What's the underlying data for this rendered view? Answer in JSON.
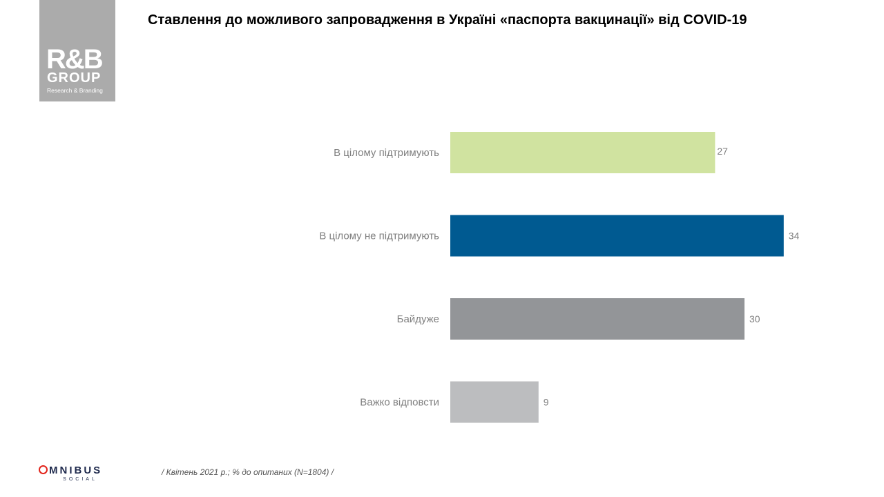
{
  "logo": {
    "line1": "R&B",
    "line2": "GROUP",
    "line3": "Research & Branding"
  },
  "title": "Ставлення до можливого запровадження в Україні «паспорта вакцинації» від COVID-19",
  "footnote": "/ Квітень 2021 р.; % до опитаних (N=1804) /",
  "brand": {
    "name": "MNIBUS",
    "sub": "SOCIAL"
  },
  "chart_data": {
    "type": "bar",
    "orientation": "horizontal",
    "title": "Ставлення до можливого запровадження в Україні «паспорта вакцинації» від COVID-19",
    "categories": [
      "В цілому підтримують",
      "В цілому не підтримують",
      "Байдуже",
      "Важко відповсти"
    ],
    "values": [
      27,
      34,
      30,
      9
    ],
    "colors": [
      "#d0e3a0",
      "#005a91",
      "#939598",
      "#bcbdbf"
    ],
    "xlim": [
      0,
      40
    ],
    "grid": false,
    "legend": "none"
  }
}
